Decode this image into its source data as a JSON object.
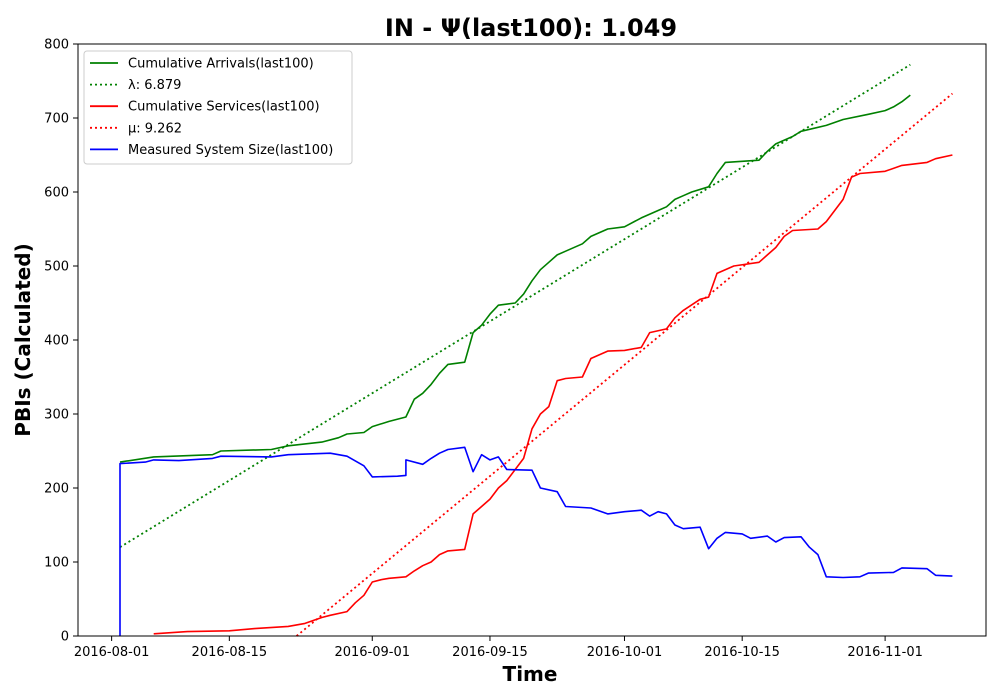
{
  "chart_data": {
    "type": "line",
    "title": "IN -  Ψ(last100): 1.049",
    "xlabel": "Time",
    "ylabel": "PBIs (Calculated)",
    "x_type": "date",
    "xlim": [
      "2016-07-28",
      "2016-11-13"
    ],
    "ylim": [
      0,
      800
    ],
    "x_ticks": [
      "2016-08-01",
      "2016-08-15",
      "2016-09-01",
      "2016-09-15",
      "2016-10-01",
      "2016-10-15",
      "2016-11-01"
    ],
    "y_ticks": [
      0,
      100,
      200,
      300,
      400,
      500,
      600,
      700,
      800
    ],
    "grid": false,
    "legend_position": "upper-left",
    "series": [
      {
        "name": "Cumulative Arrivals(last100)",
        "color": "#008000",
        "style": "solid",
        "points": [
          [
            "2016-08-02",
            235
          ],
          [
            "2016-08-06",
            242
          ],
          [
            "2016-08-13",
            245
          ],
          [
            "2016-08-14",
            250
          ],
          [
            "2016-08-20",
            252
          ],
          [
            "2016-08-22",
            257
          ],
          [
            "2016-08-26",
            262
          ],
          [
            "2016-08-28",
            268
          ],
          [
            "2016-08-29",
            273
          ],
          [
            "2016-08-31",
            275
          ],
          [
            "2016-09-01",
            283
          ],
          [
            "2016-09-03",
            290
          ],
          [
            "2016-09-05",
            296
          ],
          [
            "2016-09-06",
            320
          ],
          [
            "2016-09-07",
            328
          ],
          [
            "2016-09-08",
            340
          ],
          [
            "2016-09-09",
            355
          ],
          [
            "2016-09-10",
            367
          ],
          [
            "2016-09-12",
            370
          ],
          [
            "2016-09-13",
            410
          ],
          [
            "2016-09-14",
            420
          ],
          [
            "2016-09-15",
            435
          ],
          [
            "2016-09-16",
            447
          ],
          [
            "2016-09-18",
            450
          ],
          [
            "2016-09-19",
            462
          ],
          [
            "2016-09-20",
            480
          ],
          [
            "2016-09-21",
            495
          ],
          [
            "2016-09-22",
            505
          ],
          [
            "2016-09-23",
            515
          ],
          [
            "2016-09-24",
            520
          ],
          [
            "2016-09-26",
            530
          ],
          [
            "2016-09-27",
            540
          ],
          [
            "2016-09-29",
            550
          ],
          [
            "2016-10-01",
            553
          ],
          [
            "2016-10-03",
            565
          ],
          [
            "2016-10-05",
            575
          ],
          [
            "2016-10-06",
            580
          ],
          [
            "2016-10-07",
            590
          ],
          [
            "2016-10-08",
            595
          ],
          [
            "2016-10-09",
            600
          ],
          [
            "2016-10-11",
            607
          ],
          [
            "2016-10-12",
            625
          ],
          [
            "2016-10-13",
            640
          ],
          [
            "2016-10-17",
            643
          ],
          [
            "2016-10-18",
            655
          ],
          [
            "2016-10-19",
            665
          ],
          [
            "2016-10-21",
            675
          ],
          [
            "2016-10-22",
            682
          ],
          [
            "2016-10-25",
            690
          ],
          [
            "2016-10-27",
            698
          ],
          [
            "2016-10-30",
            705
          ],
          [
            "2016-11-01",
            710
          ],
          [
            "2016-11-02",
            715
          ],
          [
            "2016-11-03",
            722
          ],
          [
            "2016-11-04",
            731
          ]
        ]
      },
      {
        "name": "λ: 6.879",
        "color": "#008000",
        "style": "dotted",
        "points": [
          [
            "2016-08-02",
            120
          ],
          [
            "2016-11-04",
            772
          ]
        ]
      },
      {
        "name": "Cumulative Services(last100)",
        "color": "#ff0000",
        "style": "solid",
        "points": [
          [
            "2016-08-06",
            3
          ],
          [
            "2016-08-10",
            6
          ],
          [
            "2016-08-15",
            7
          ],
          [
            "2016-08-18",
            10
          ],
          [
            "2016-08-22",
            13
          ],
          [
            "2016-08-24",
            17
          ],
          [
            "2016-08-26",
            25
          ],
          [
            "2016-08-27",
            28
          ],
          [
            "2016-08-29",
            33
          ],
          [
            "2016-08-30",
            45
          ],
          [
            "2016-08-31",
            55
          ],
          [
            "2016-09-01",
            73
          ],
          [
            "2016-09-02",
            76
          ],
          [
            "2016-09-03",
            78
          ],
          [
            "2016-09-05",
            80
          ],
          [
            "2016-09-06",
            88
          ],
          [
            "2016-09-07",
            95
          ],
          [
            "2016-09-08",
            100
          ],
          [
            "2016-09-09",
            110
          ],
          [
            "2016-09-10",
            115
          ],
          [
            "2016-09-12",
            117
          ],
          [
            "2016-09-13",
            165
          ],
          [
            "2016-09-14",
            175
          ],
          [
            "2016-09-15",
            185
          ],
          [
            "2016-09-16",
            200
          ],
          [
            "2016-09-17",
            210
          ],
          [
            "2016-09-18",
            225
          ],
          [
            "2016-09-19",
            240
          ],
          [
            "2016-09-20",
            280
          ],
          [
            "2016-09-21",
            300
          ],
          [
            "2016-09-22",
            310
          ],
          [
            "2016-09-23",
            345
          ],
          [
            "2016-09-24",
            348
          ],
          [
            "2016-09-26",
            350
          ],
          [
            "2016-09-27",
            375
          ],
          [
            "2016-09-29",
            385
          ],
          [
            "2016-10-01",
            386
          ],
          [
            "2016-10-03",
            390
          ],
          [
            "2016-10-04",
            410
          ],
          [
            "2016-10-06",
            415
          ],
          [
            "2016-10-07",
            430
          ],
          [
            "2016-10-08",
            440
          ],
          [
            "2016-10-10",
            455
          ],
          [
            "2016-10-11",
            458
          ],
          [
            "2016-10-12",
            490
          ],
          [
            "2016-10-14",
            500
          ],
          [
            "2016-10-17",
            505
          ],
          [
            "2016-10-18",
            515
          ],
          [
            "2016-10-19",
            525
          ],
          [
            "2016-10-20",
            540
          ],
          [
            "2016-10-21",
            548
          ],
          [
            "2016-10-24",
            550
          ],
          [
            "2016-10-25",
            560
          ],
          [
            "2016-10-26",
            575
          ],
          [
            "2016-10-27",
            590
          ],
          [
            "2016-10-28",
            620
          ],
          [
            "2016-10-29",
            625
          ],
          [
            "2016-11-01",
            628
          ],
          [
            "2016-11-03",
            636
          ],
          [
            "2016-11-06",
            640
          ],
          [
            "2016-11-07",
            645
          ],
          [
            "2016-11-09",
            650
          ]
        ]
      },
      {
        "name": "μ: 9.262",
        "color": "#ff0000",
        "style": "dotted",
        "points": [
          [
            "2016-08-23",
            0
          ],
          [
            "2016-11-09",
            733
          ]
        ]
      },
      {
        "name": "Measured System Size(last100)",
        "color": "#0000ff",
        "style": "solid",
        "points": [
          [
            "2016-08-02",
            0
          ],
          [
            "2016-08-02",
            233
          ],
          [
            "2016-08-05",
            235
          ],
          [
            "2016-08-06",
            238
          ],
          [
            "2016-08-09",
            237
          ],
          [
            "2016-08-13",
            240
          ],
          [
            "2016-08-14",
            243
          ],
          [
            "2016-08-20",
            242
          ],
          [
            "2016-08-22",
            245
          ],
          [
            "2016-08-27",
            247
          ],
          [
            "2016-08-29",
            243
          ],
          [
            "2016-08-31",
            230
          ],
          [
            "2016-09-01",
            215
          ],
          [
            "2016-09-04",
            216
          ],
          [
            "2016-09-05",
            217
          ],
          [
            "2016-09-05",
            238
          ],
          [
            "2016-09-07",
            232
          ],
          [
            "2016-09-08",
            240
          ],
          [
            "2016-09-09",
            247
          ],
          [
            "2016-09-10",
            252
          ],
          [
            "2016-09-12",
            255
          ],
          [
            "2016-09-13",
            222
          ],
          [
            "2016-09-14",
            245
          ],
          [
            "2016-09-15",
            238
          ],
          [
            "2016-09-16",
            242
          ],
          [
            "2016-09-17",
            225
          ],
          [
            "2016-09-20",
            224
          ],
          [
            "2016-09-21",
            200
          ],
          [
            "2016-09-23",
            195
          ],
          [
            "2016-09-24",
            175
          ],
          [
            "2016-09-27",
            173
          ],
          [
            "2016-09-29",
            165
          ],
          [
            "2016-10-01",
            168
          ],
          [
            "2016-10-03",
            170
          ],
          [
            "2016-10-04",
            162
          ],
          [
            "2016-10-05",
            168
          ],
          [
            "2016-10-06",
            165
          ],
          [
            "2016-10-07",
            150
          ],
          [
            "2016-10-08",
            145
          ],
          [
            "2016-10-10",
            147
          ],
          [
            "2016-10-11",
            118
          ],
          [
            "2016-10-12",
            132
          ],
          [
            "2016-10-13",
            140
          ],
          [
            "2016-10-15",
            138
          ],
          [
            "2016-10-16",
            132
          ],
          [
            "2016-10-18",
            135
          ],
          [
            "2016-10-19",
            127
          ],
          [
            "2016-10-20",
            133
          ],
          [
            "2016-10-22",
            134
          ],
          [
            "2016-10-23",
            120
          ],
          [
            "2016-10-24",
            110
          ],
          [
            "2016-10-25",
            80
          ],
          [
            "2016-10-27",
            79
          ],
          [
            "2016-10-29",
            80
          ],
          [
            "2016-10-30",
            85
          ],
          [
            "2016-11-02",
            86
          ],
          [
            "2016-11-03",
            92
          ],
          [
            "2016-11-06",
            91
          ],
          [
            "2016-11-07",
            82
          ],
          [
            "2016-11-09",
            81
          ]
        ]
      }
    ]
  }
}
